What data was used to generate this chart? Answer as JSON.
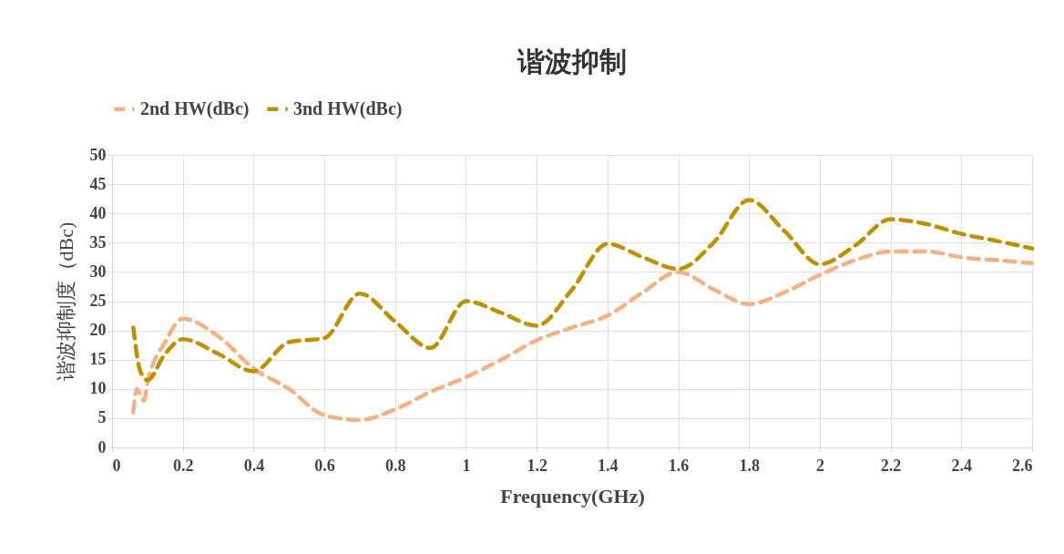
{
  "chart_data": {
    "type": "line",
    "title": "谐波抑制",
    "xlabel": "Frequency(GHz)",
    "ylabel": "谐波抑制度（dBc)",
    "xlim": [
      0,
      2.6
    ],
    "xticks": [
      0,
      0.2,
      0.4,
      0.6,
      0.8,
      1,
      1.2,
      1.4,
      1.6,
      1.8,
      2,
      2.2,
      2.4,
      2.6
    ],
    "ylim": [
      0,
      50
    ],
    "yticks": [
      0,
      5,
      10,
      15,
      20,
      25,
      30,
      35,
      40,
      45,
      50
    ],
    "grid": true,
    "legend": "top",
    "line_style": "dashed",
    "marker": "none",
    "series": [
      {
        "name": "2nd HW(dBc)",
        "color": "#f4b183",
        "x": [
          0.06,
          0.07,
          0.09,
          0.1,
          0.15,
          0.2,
          0.3,
          0.4,
          0.5,
          0.6,
          0.7,
          0.8,
          0.9,
          1.0,
          1.1,
          1.2,
          1.3,
          1.4,
          1.5,
          1.6,
          1.7,
          1.8,
          1.9,
          2.0,
          2.1,
          2.2,
          2.3,
          2.4,
          2.5,
          2.6
        ],
        "values": [
          6,
          10,
          8,
          11,
          18,
          22,
          19,
          13.5,
          10,
          5.5,
          4.7,
          6.5,
          9.5,
          12,
          15,
          18.3,
          20.5,
          22.5,
          26.5,
          30,
          27,
          24.5,
          26.5,
          29.5,
          32,
          33.5,
          33.5,
          32.5,
          32,
          31.5
        ]
      },
      {
        "name": "3nd HW(dBc)",
        "color": "#bf9000",
        "x": [
          0.06,
          0.08,
          0.1,
          0.15,
          0.2,
          0.3,
          0.4,
          0.5,
          0.6,
          0.7,
          0.8,
          0.9,
          1.0,
          1.1,
          1.2,
          1.3,
          1.4,
          1.5,
          1.6,
          1.7,
          1.8,
          1.9,
          2.0,
          2.1,
          2.2,
          2.3,
          2.4,
          2.5,
          2.6
        ],
        "values": [
          20.5,
          13,
          11.5,
          16,
          18.5,
          16,
          13,
          18,
          18.7,
          26.3,
          21.5,
          17,
          25,
          23,
          20.8,
          27,
          34.8,
          32.5,
          30.5,
          35,
          42.3,
          37,
          31.3,
          34.5,
          39,
          38.2,
          36.5,
          35.3,
          34
        ]
      }
    ]
  }
}
